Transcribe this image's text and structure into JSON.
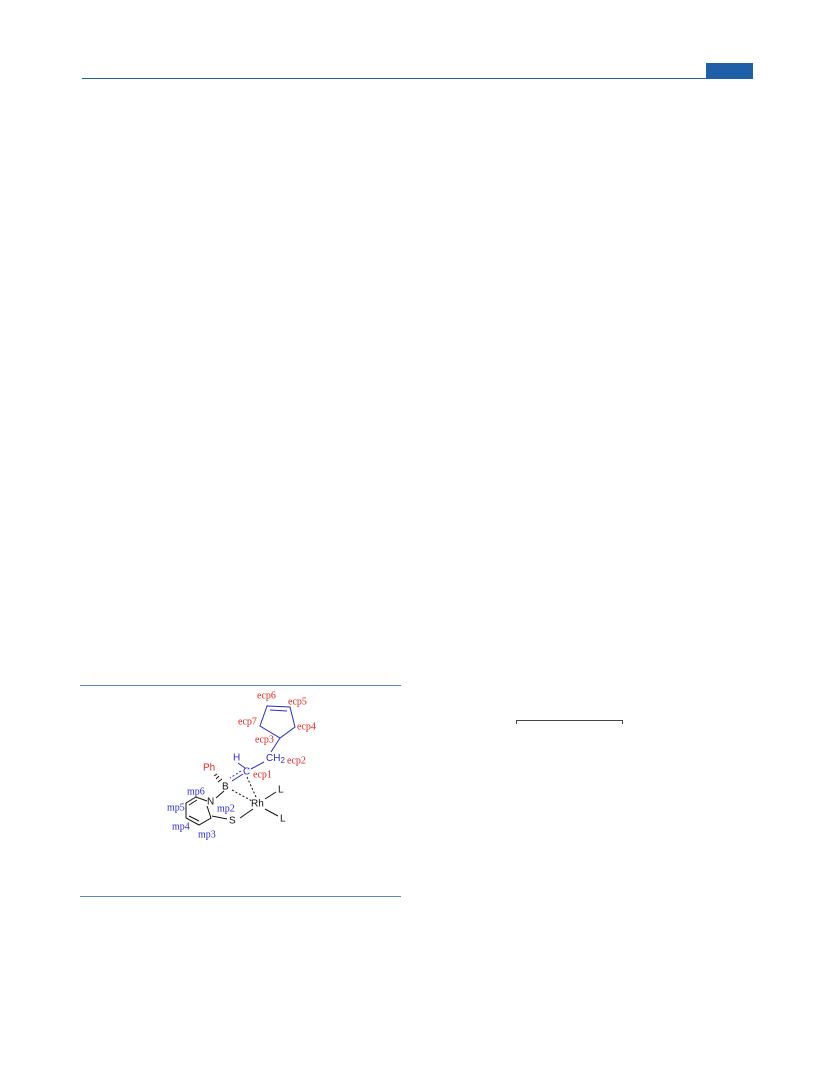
{
  "figure": {
    "labels": [
      "ecp6",
      "ecp5",
      "ecp7",
      "ecp4",
      "ecp3",
      "ecp2",
      "H",
      "C",
      "ecp1",
      "Ph",
      "B",
      "mp6",
      "N",
      "mp5",
      "mp2",
      "Rh",
      "L",
      "L",
      "S",
      "mp4",
      "mp3"
    ],
    "ch2": {
      "text": "CH",
      "sub": "2"
    }
  }
}
